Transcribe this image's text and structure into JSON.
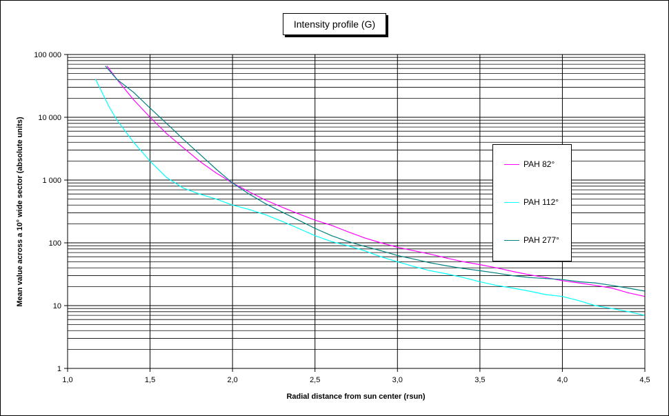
{
  "chart_data": {
    "type": "line",
    "title": "Intensity profile (G)",
    "xlabel": "Radial distance from sun center (rsun)",
    "ylabel": "Mean value across a 10° wide sector (absolute units)",
    "xlim": [
      1.0,
      4.5
    ],
    "ylim": [
      1,
      100000
    ],
    "y_scale": "log",
    "grid": true,
    "legend_position": "right",
    "x_tick_labels": [
      "1,0",
      "1,5",
      "2,0",
      "2,5",
      "3,0",
      "3,5",
      "4,0",
      "4,5"
    ],
    "y_tick_labels": [
      "1",
      "10",
      "100",
      "1 000",
      "10 000",
      "100 000"
    ],
    "series": [
      {
        "name": "PAH 82°",
        "color": "#ff00ff",
        "x": [
          1.24,
          1.3,
          1.4,
          1.5,
          1.6,
          1.7,
          1.8,
          1.9,
          2.0,
          2.1,
          2.2,
          2.3,
          2.4,
          2.5,
          2.6,
          2.7,
          2.8,
          2.9,
          3.0,
          3.1,
          3.2,
          3.3,
          3.4,
          3.5,
          3.6,
          3.7,
          3.8,
          3.9,
          4.0,
          4.1,
          4.2,
          4.3,
          4.4,
          4.5
        ],
        "y": [
          65000,
          40000,
          19000,
          10000,
          5500,
          3300,
          2000,
          1300,
          900,
          650,
          480,
          370,
          290,
          230,
          190,
          150,
          120,
          100,
          85,
          75,
          66,
          57,
          50,
          45,
          40,
          35,
          31,
          28,
          25,
          23,
          21,
          19,
          16,
          14
        ]
      },
      {
        "name": "PAH 112°",
        "color": "#00ffff",
        "x": [
          1.17,
          1.25,
          1.3,
          1.4,
          1.5,
          1.6,
          1.7,
          1.8,
          1.9,
          2.0,
          2.1,
          2.2,
          2.3,
          2.4,
          2.5,
          2.6,
          2.7,
          2.8,
          2.9,
          3.0,
          3.1,
          3.2,
          3.3,
          3.4,
          3.5,
          3.6,
          3.7,
          3.8,
          3.9,
          4.0,
          4.1,
          4.2,
          4.3,
          4.4,
          4.5
        ],
        "y": [
          40000,
          15000,
          9000,
          4000,
          2000,
          1100,
          750,
          600,
          500,
          400,
          340,
          280,
          220,
          170,
          130,
          105,
          90,
          75,
          60,
          50,
          42,
          36,
          32,
          28,
          24,
          21,
          19,
          17,
          15,
          14,
          12,
          10,
          9,
          8,
          7
        ]
      },
      {
        "name": "PAH 277°",
        "color": "#008080",
        "x": [
          1.23,
          1.3,
          1.4,
          1.5,
          1.6,
          1.7,
          1.8,
          1.9,
          2.0,
          2.1,
          2.2,
          2.3,
          2.4,
          2.5,
          2.6,
          2.7,
          2.8,
          2.9,
          3.0,
          3.1,
          3.2,
          3.3,
          3.4,
          3.5,
          3.6,
          3.7,
          3.8,
          3.9,
          4.0,
          4.1,
          4.2,
          4.3,
          4.4,
          4.5
        ],
        "y": [
          65000,
          40000,
          25000,
          14000,
          8000,
          4500,
          2600,
          1500,
          900,
          600,
          420,
          310,
          230,
          170,
          130,
          105,
          88,
          75,
          63,
          55,
          48,
          43,
          39,
          36,
          33,
          30,
          28,
          27,
          26,
          24,
          23,
          21,
          19,
          17
        ]
      }
    ]
  }
}
